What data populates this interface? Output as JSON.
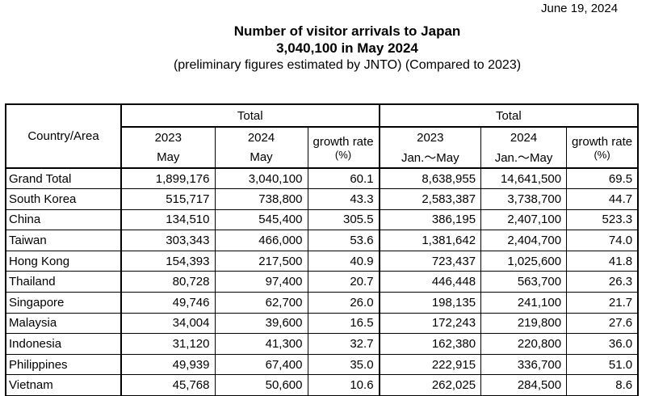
{
  "date": "June 19, 2024",
  "title_line1": "Number of visitor arrivals to Japan",
  "title_line2": "3,040,100 in May 2024",
  "title_line3": "(preliminary figures estimated by JNTO) (Compared to 2023)",
  "header": {
    "country": "Country/Area",
    "group1": "Total",
    "group2": "Total",
    "y2023": "2023",
    "y2024": "2024",
    "may": "May",
    "jan_may": "Jan.～May",
    "growth": "growth rate",
    "pct": "(%)"
  },
  "rows": [
    {
      "name": "Grand Total",
      "m2023": "1,899,176",
      "m2024": "3,040,100",
      "mg": "60.1",
      "c2023": "8,638,955",
      "c2024": "14,641,500",
      "cg": "69.5"
    },
    {
      "name": "South Korea",
      "m2023": "515,717",
      "m2024": "738,800",
      "mg": "43.3",
      "c2023": "2,583,387",
      "c2024": "3,738,700",
      "cg": "44.7"
    },
    {
      "name": "China",
      "m2023": "134,510",
      "m2024": "545,400",
      "mg": "305.5",
      "c2023": "386,195",
      "c2024": "2,407,100",
      "cg": "523.3"
    },
    {
      "name": "Taiwan",
      "m2023": "303,343",
      "m2024": "466,000",
      "mg": "53.6",
      "c2023": "1,381,642",
      "c2024": "2,404,700",
      "cg": "74.0"
    },
    {
      "name": "Hong Kong",
      "m2023": "154,393",
      "m2024": "217,500",
      "mg": "40.9",
      "c2023": "723,437",
      "c2024": "1,025,600",
      "cg": "41.8"
    },
    {
      "name": "Thailand",
      "m2023": "80,728",
      "m2024": "97,400",
      "mg": "20.7",
      "c2023": "446,448",
      "c2024": "563,700",
      "cg": "26.3"
    },
    {
      "name": "Singapore",
      "m2023": "49,746",
      "m2024": "62,700",
      "mg": "26.0",
      "c2023": "198,135",
      "c2024": "241,100",
      "cg": "21.7"
    },
    {
      "name": "Malaysia",
      "m2023": "34,004",
      "m2024": "39,600",
      "mg": "16.5",
      "c2023": "172,243",
      "c2024": "219,800",
      "cg": "27.6"
    },
    {
      "name": "Indonesia",
      "m2023": "31,120",
      "m2024": "41,300",
      "mg": "32.7",
      "c2023": "162,380",
      "c2024": "220,800",
      "cg": "36.0"
    },
    {
      "name": "Philippines",
      "m2023": "49,939",
      "m2024": "67,400",
      "mg": "35.0",
      "c2023": "222,915",
      "c2024": "336,700",
      "cg": "51.0"
    },
    {
      "name": "Vietnam",
      "m2023": "45,768",
      "m2024": "50,600",
      "mg": "10.6",
      "c2023": "262,025",
      "c2024": "284,500",
      "cg": "8.6"
    }
  ]
}
